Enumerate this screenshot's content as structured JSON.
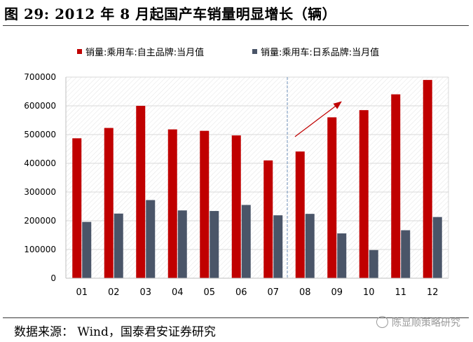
{
  "figure": {
    "title": "图 29:  2012 年 8 月起国产车销量明显增长（辆）",
    "source": "数据来源：  Wind，国泰君安证券研究",
    "watermark": "陈显顺策略研究"
  },
  "chart_data": {
    "type": "bar",
    "categories": [
      "01",
      "02",
      "03",
      "04",
      "05",
      "06",
      "07",
      "08",
      "09",
      "10",
      "11",
      "12"
    ],
    "series": [
      {
        "name": "销量:乘用车:自主品牌:当月值",
        "color": "#C00000",
        "values": [
          487000,
          523000,
          600000,
          518000,
          513000,
          497000,
          410000,
          441000,
          560000,
          585000,
          640000,
          690000
        ]
      },
      {
        "name": "销量:乘用车:日系品牌:当月值",
        "color": "#4A5568",
        "values": [
          196000,
          225000,
          272000,
          236000,
          234000,
          255000,
          219000,
          224000,
          156000,
          98000,
          167000,
          213000
        ]
      }
    ],
    "ylim": [
      0,
      700000
    ],
    "yticks": [
      0,
      100000,
      200000,
      300000,
      400000,
      500000,
      600000,
      700000
    ],
    "ytick_labels": [
      "0",
      "100000",
      "200000",
      "300000",
      "400000",
      "500000",
      "600000",
      "700000"
    ],
    "grid": true,
    "legend": "top",
    "annotations": {
      "divider_between": [
        "07",
        "08"
      ],
      "trend_arrow": "upward arrow over 08–09 indicating increase"
    }
  }
}
